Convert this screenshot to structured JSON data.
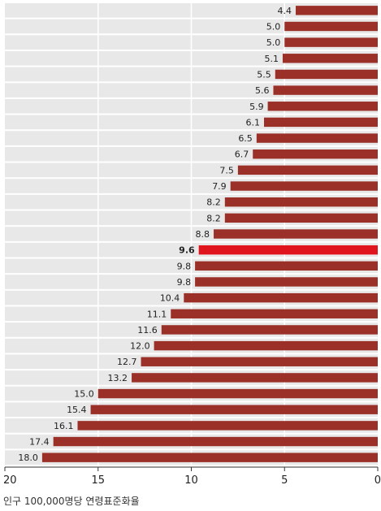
{
  "chart_data": {
    "type": "bar",
    "orientation": "horizontal",
    "x_axis_direction": "reversed",
    "values": [
      4.4,
      5.0,
      5.0,
      5.1,
      5.5,
      5.6,
      5.9,
      6.1,
      6.5,
      6.7,
      7.5,
      7.9,
      8.2,
      8.2,
      8.8,
      9.6,
      9.8,
      9.8,
      10.4,
      11.1,
      11.6,
      12.0,
      12.7,
      13.2,
      15.0,
      15.4,
      16.1,
      17.4,
      18.0
    ],
    "value_labels": [
      "4.4",
      "5.0",
      "5.0",
      "5.1",
      "5.5",
      "5.6",
      "5.9",
      "6.1",
      "6.5",
      "6.7",
      "7.5",
      "7.9",
      "8.2",
      "8.2",
      "8.8",
      "9.6",
      "9.8",
      "9.8",
      "10.4",
      "11.1",
      "11.6",
      "12.0",
      "12.7",
      "13.2",
      "15.0",
      "15.4",
      "16.1",
      "17.4",
      "18.0"
    ],
    "highlight_index": 15,
    "xlim": [
      0,
      20
    ],
    "xticks": [
      20,
      15,
      10,
      5,
      0
    ],
    "xlabel": "인구 100,000명당 연령표준화율",
    "grid": true,
    "colors": {
      "bar": "#9a3028",
      "highlight_bar": "#e0141c",
      "row_background": "#e8e8e8",
      "grid": "#ffffff"
    }
  }
}
